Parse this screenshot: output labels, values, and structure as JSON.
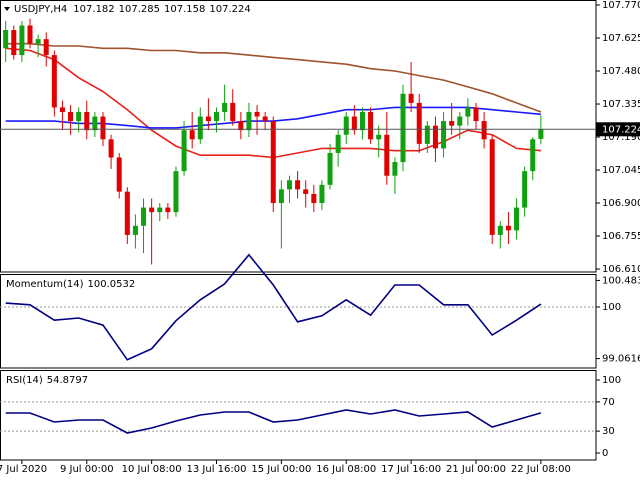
{
  "chart_data": [
    {
      "type": "candlestick",
      "title": "USDJPY,H4",
      "x": [
        0,
        1,
        2,
        3,
        4,
        5,
        6,
        7,
        8,
        9,
        10,
        11,
        12,
        13,
        14,
        15,
        16,
        17,
        18,
        19,
        20,
        21,
        22,
        23,
        24,
        25,
        26,
        27,
        28,
        29,
        30,
        31,
        32,
        33,
        34,
        35,
        36,
        37,
        38,
        39,
        40,
        41,
        42,
        43,
        44,
        45,
        46,
        47,
        48,
        49,
        50,
        51,
        52,
        53,
        54,
        55,
        56,
        57,
        58,
        59,
        60,
        61,
        62,
        63,
        64,
        65,
        66
      ],
      "open": [
        107.58,
        107.66,
        107.55,
        107.68,
        107.6,
        107.62,
        107.55,
        107.32,
        107.3,
        107.26,
        107.3,
        107.22,
        107.28,
        107.18,
        107.1,
        106.95,
        106.76,
        106.8,
        106.88,
        106.86,
        106.88,
        106.86,
        107.04,
        107.22,
        107.18,
        107.28,
        107.26,
        107.3,
        107.34,
        107.26,
        107.22,
        107.3,
        107.28,
        107.26,
        106.9,
        106.96,
        107.0,
        106.96,
        106.94,
        106.9,
        106.98,
        107.12,
        107.2,
        107.28,
        107.22,
        107.3,
        107.18,
        107.2,
        107.02,
        107.08,
        107.38,
        107.34,
        107.16,
        107.24,
        107.14,
        107.26,
        107.24,
        107.28,
        107.32,
        107.26,
        107.18,
        106.76,
        106.8,
        106.78,
        106.88,
        107.04,
        107.182
      ],
      "high": [
        107.7,
        107.68,
        107.7,
        107.71,
        107.64,
        107.65,
        107.57,
        107.35,
        107.33,
        107.32,
        107.35,
        107.3,
        107.3,
        107.2,
        107.12,
        106.97,
        106.85,
        106.92,
        106.92,
        106.9,
        106.9,
        107.06,
        107.26,
        107.3,
        107.32,
        107.36,
        107.32,
        107.42,
        107.4,
        107.3,
        107.34,
        107.33,
        107.3,
        107.28,
        107.0,
        107.02,
        107.04,
        107.0,
        106.98,
        107.0,
        107.16,
        107.22,
        107.3,
        107.33,
        107.32,
        107.32,
        107.24,
        107.3,
        107.1,
        107.42,
        107.52,
        107.38,
        107.26,
        107.28,
        107.3,
        107.34,
        107.3,
        107.36,
        107.34,
        107.3,
        107.2,
        106.82,
        106.86,
        106.92,
        107.06,
        107.19,
        107.285
      ],
      "low": [
        107.52,
        107.53,
        107.52,
        107.58,
        107.54,
        107.5,
        107.28,
        107.22,
        107.2,
        107.21,
        107.18,
        107.19,
        107.15,
        107.05,
        106.92,
        106.72,
        106.7,
        106.68,
        106.63,
        106.82,
        106.83,
        106.84,
        107.02,
        107.14,
        107.16,
        107.22,
        107.21,
        107.26,
        107.24,
        107.18,
        107.19,
        107.2,
        107.22,
        106.86,
        106.7,
        106.9,
        106.92,
        106.88,
        106.86,
        106.87,
        106.96,
        107.06,
        107.16,
        107.2,
        107.18,
        107.16,
        107.1,
        106.98,
        106.94,
        107.04,
        107.3,
        107.12,
        107.12,
        107.08,
        107.1,
        107.2,
        107.18,
        107.24,
        107.22,
        107.14,
        106.72,
        106.7,
        106.72,
        106.74,
        106.84,
        107.0,
        107.158
      ],
      "close": [
        107.66,
        107.55,
        107.68,
        107.6,
        107.62,
        107.55,
        107.32,
        107.3,
        107.26,
        107.3,
        107.22,
        107.28,
        107.18,
        107.1,
        106.95,
        106.76,
        106.8,
        106.88,
        106.86,
        106.88,
        106.86,
        107.04,
        107.22,
        107.18,
        107.28,
        107.26,
        107.3,
        107.34,
        107.26,
        107.22,
        107.3,
        107.28,
        107.26,
        106.9,
        106.96,
        107.0,
        106.96,
        106.94,
        106.9,
        106.98,
        107.12,
        107.2,
        107.28,
        107.22,
        107.3,
        107.18,
        107.2,
        107.02,
        107.08,
        107.38,
        107.34,
        107.16,
        107.24,
        107.14,
        107.26,
        107.24,
        107.28,
        107.32,
        107.26,
        107.18,
        106.76,
        106.8,
        106.78,
        106.88,
        107.04,
        107.18,
        107.224
      ],
      "up_color": "#10a010",
      "down_color": "#e00000",
      "xlim": [
        -0.7,
        72.8
      ],
      "ylim": [
        106.597,
        107.792
      ],
      "yticks": [
        {
          "value": 107.77,
          "label": "107.770"
        },
        107.625,
        {
          "value": 107.48,
          "label": "107.480"
        },
        107.335,
        {
          "value": 107.19,
          "label": "107.190"
        },
        107.045,
        {
          "value": 106.9,
          "label": "106.900"
        },
        106.755,
        {
          "value": 106.61,
          "label": "106.610"
        }
      ],
      "xticks": [
        {
          "value": 2,
          "label": "7 Jul 2020"
        },
        {
          "value": 10,
          "label": "9 Jul 00:00"
        },
        {
          "value": 18,
          "label": "10 Jul 08:00"
        },
        {
          "value": 26,
          "label": "13 Jul 16:00"
        },
        {
          "value": 34,
          "label": "15 Jul 00:00"
        },
        {
          "value": 42,
          "label": "16 Jul 08:00"
        },
        {
          "value": 50,
          "label": "17 Jul 16:00"
        },
        {
          "value": 58,
          "label": "21 Jul 00:00"
        },
        {
          "value": 66,
          "label": "22 Jul 08:00"
        }
      ],
      "last_price_line": true,
      "series": [
        {
          "color": "#e8201a",
          "x": [
            0,
            3,
            6,
            9,
            12,
            15,
            18,
            21,
            24,
            27,
            30,
            33,
            36,
            39,
            42,
            45,
            48,
            51,
            54,
            57,
            60,
            63,
            66
          ],
          "values": [
            107.58,
            107.57,
            107.53,
            107.45,
            107.39,
            107.31,
            107.22,
            107.15,
            107.11,
            107.11,
            107.11,
            107.1,
            107.12,
            107.14,
            107.14,
            107.14,
            107.13,
            107.13,
            107.17,
            107.22,
            107.2,
            107.14,
            107.13
          ]
        },
        {
          "color": "#1a1aff",
          "x": [
            0,
            3,
            6,
            9,
            12,
            15,
            18,
            21,
            24,
            27,
            30,
            33,
            36,
            39,
            42,
            45,
            48,
            51,
            54,
            57,
            60,
            63,
            66
          ],
          "values": [
            107.26,
            107.26,
            107.26,
            107.25,
            107.25,
            107.24,
            107.23,
            107.23,
            107.24,
            107.25,
            107.26,
            107.26,
            107.27,
            107.29,
            107.31,
            107.31,
            107.32,
            107.32,
            107.32,
            107.32,
            107.31,
            107.3,
            107.29
          ]
        },
        {
          "color": "#a0522d",
          "x": [
            0,
            3,
            6,
            9,
            12,
            15,
            18,
            21,
            24,
            27,
            30,
            33,
            36,
            39,
            42,
            45,
            48,
            51,
            54,
            57,
            60,
            63,
            66
          ],
          "values": [
            107.6,
            107.6,
            107.59,
            107.59,
            107.58,
            107.58,
            107.57,
            107.57,
            107.56,
            107.56,
            107.55,
            107.54,
            107.53,
            107.52,
            107.51,
            107.49,
            107.48,
            107.46,
            107.44,
            107.41,
            107.38,
            107.34,
            107.3
          ]
        }
      ]
    },
    {
      "type": "line",
      "title": "Momentum(14)",
      "ylim": [
        98.89,
        100.6
      ],
      "yticks": [
        100.4836,
        100,
        99.0616
      ],
      "levels": [
        100
      ],
      "series": [
        {
          "color": "#000080",
          "x": [
            0,
            3,
            6,
            9,
            12,
            15,
            18,
            21,
            24,
            27,
            30,
            33,
            36,
            39,
            42,
            45,
            48,
            51,
            54,
            57,
            60,
            63,
            66
          ],
          "values": [
            100.07,
            100.04,
            99.76,
            99.8,
            99.67,
            99.04,
            99.24,
            99.75,
            100.13,
            100.42,
            100.95,
            100.4,
            99.73,
            99.84,
            100.13,
            99.85,
            100.4,
            100.4,
            100.04,
            100.04,
            99.49,
            99.76,
            100.0532
          ]
        }
      ]
    },
    {
      "type": "line",
      "title": "RSI(14)",
      "ylim": [
        -9.6,
        113.7
      ],
      "yticks": [
        100,
        70,
        30,
        0
      ],
      "levels": [
        70,
        30
      ],
      "series": [
        {
          "color": "#000080",
          "x": [
            0,
            3,
            6,
            9,
            12,
            15,
            18,
            21,
            24,
            27,
            30,
            33,
            36,
            39,
            42,
            45,
            48,
            51,
            54,
            57,
            60,
            63,
            66
          ],
          "values": [
            54.8,
            54.8,
            42.5,
            45.2,
            45.2,
            27.4,
            34.2,
            43.8,
            52.1,
            56.2,
            56.2,
            42.5,
            45.2,
            52.1,
            58.9,
            53.4,
            58.9,
            50.7,
            53.4,
            56.2,
            35.6,
            45.2,
            54.8797
          ]
        }
      ]
    }
  ]
}
